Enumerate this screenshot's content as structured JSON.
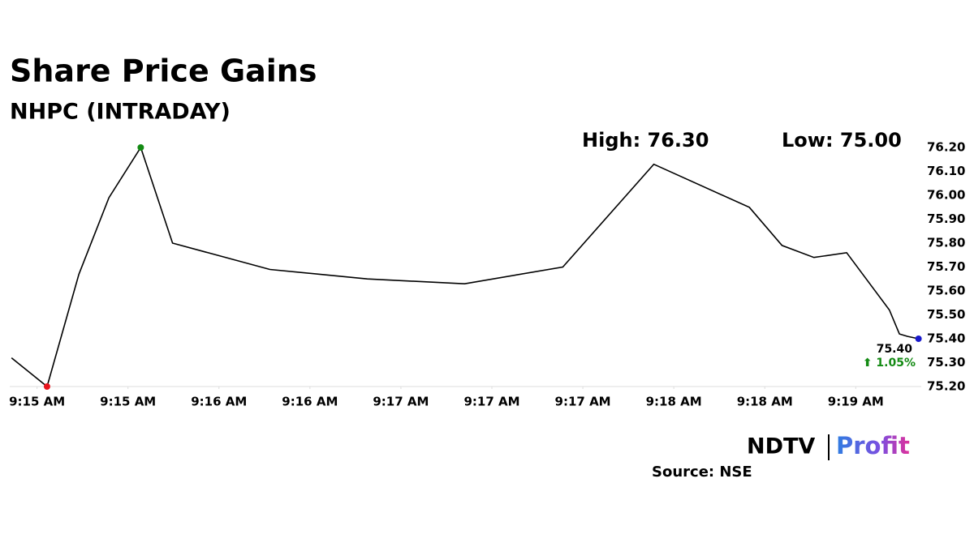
{
  "chart_data": {
    "type": "line",
    "title": "Share Price Gains",
    "subtitle": "NHPC (INTRADAY)",
    "high_label": "High: 76.30",
    "low_label": "Low: 75.00",
    "last_value_label": "75.40",
    "change_label": "⬆ 1.05%",
    "source": "Source: NSE",
    "logo": {
      "left": "NDTV",
      "right": "Profit"
    },
    "x": [
      -0.28,
      0.11,
      0.46,
      0.79,
      1.14,
      1.49,
      2.56,
      3.63,
      4.7,
      5.78,
      6.78,
      7.83,
      8.19,
      8.54,
      8.9,
      9.37,
      9.48,
      9.57,
      9.69
    ],
    "values": [
      75.32,
      75.2,
      75.67,
      75.99,
      76.2,
      75.8,
      75.69,
      75.65,
      75.63,
      75.7,
      76.13,
      75.95,
      75.79,
      75.74,
      75.76,
      75.52,
      75.42,
      75.41,
      75.4
    ],
    "color": "#000000",
    "min_marker_color": "#e8141c",
    "max_marker_color": "#138a13",
    "last_marker_color": "#1a1acc",
    "change_color": "#138a13",
    "xlim": [
      -0.3,
      9.72
    ],
    "xticks": [
      {
        "value": 0,
        "label": "9:15 AM"
      },
      {
        "value": 1,
        "label": "9:15 AM"
      },
      {
        "value": 2,
        "label": "9:16 AM"
      },
      {
        "value": 3,
        "label": "9:16 AM"
      },
      {
        "value": 4,
        "label": "9:17 AM"
      },
      {
        "value": 5,
        "label": "9:17 AM"
      },
      {
        "value": 6,
        "label": "9:17 AM"
      },
      {
        "value": 7,
        "label": "9:18 AM"
      },
      {
        "value": 8,
        "label": "9:18 AM"
      },
      {
        "value": 9,
        "label": "9:19 AM"
      }
    ],
    "ylim": [
      75.2,
      76.2
    ],
    "yticks": [
      {
        "value": 75.2,
        "label": "75.20"
      },
      {
        "value": 75.3,
        "label": "75.30"
      },
      {
        "value": 75.4,
        "label": "75.40"
      },
      {
        "value": 75.5,
        "label": "75.50"
      },
      {
        "value": 75.6,
        "label": "75.60"
      },
      {
        "value": 75.7,
        "label": "75.70"
      },
      {
        "value": 75.8,
        "label": "75.80"
      },
      {
        "value": 75.9,
        "label": "75.90"
      },
      {
        "value": 76.0,
        "label": "76.00"
      },
      {
        "value": 76.1,
        "label": "76.10"
      },
      {
        "value": 76.2,
        "label": "76.20"
      }
    ]
  }
}
